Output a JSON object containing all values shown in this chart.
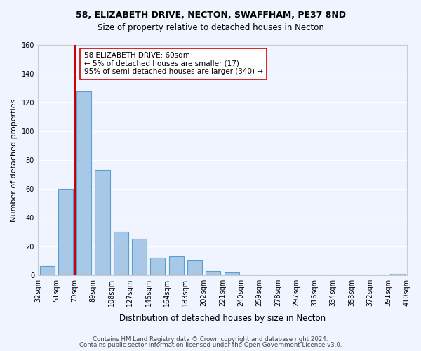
{
  "title1": "58, ELIZABETH DRIVE, NECTON, SWAFFHAM, PE37 8ND",
  "title2": "Size of property relative to detached houses in Necton",
  "xlabel": "Distribution of detached houses by size in Necton",
  "ylabel": "Number of detached properties",
  "bins": [
    "32sqm",
    "51sqm",
    "70sqm",
    "89sqm",
    "108sqm",
    "127sqm",
    "145sqm",
    "164sqm",
    "183sqm",
    "202sqm",
    "221sqm",
    "240sqm",
    "259sqm",
    "278sqm",
    "297sqm",
    "316sqm",
    "334sqm",
    "353sqm",
    "372sqm",
    "391sqm",
    "410sqm"
  ],
  "counts": [
    6,
    60,
    128,
    73,
    30,
    25,
    12,
    13,
    10,
    3,
    2,
    0,
    0,
    0,
    0,
    0,
    0,
    0,
    0,
    1
  ],
  "bar_color": "#a8c8e8",
  "bar_edge_color": "#5a9fd4",
  "property_line_x": 1.5,
  "property_line_color": "#cc0000",
  "annotation_box_text": "58 ELIZABETH DRIVE: 60sqm\n← 5% of detached houses are smaller (17)\n95% of semi-detached houses are larger (340) →",
  "annotation_box_color": "#ffffff",
  "annotation_box_edge_color": "#cc0000",
  "ylim": [
    0,
    160
  ],
  "yticks": [
    0,
    20,
    40,
    60,
    80,
    100,
    120,
    140,
    160
  ],
  "footer1": "Contains HM Land Registry data © Crown copyright and database right 2024.",
  "footer2": "Contains public sector information licensed under the Open Government Licence v3.0.",
  "background_color": "#f0f4ff",
  "grid_color": "#ffffff"
}
